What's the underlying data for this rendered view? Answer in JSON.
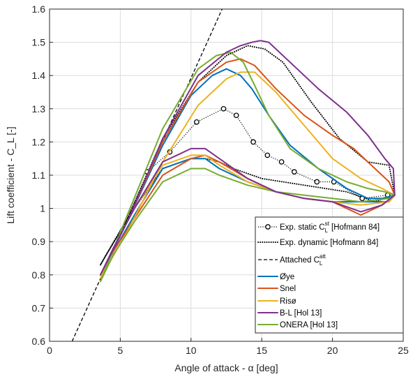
{
  "chart_data": {
    "type": "line",
    "xlabel": "Angle of attack - α [deg]",
    "ylabel": "Lift coefficient - C_L [-]",
    "xlim": [
      0,
      25
    ],
    "ylim": [
      0.6,
      1.6
    ],
    "xticks": [
      "0",
      "5",
      "10",
      "15",
      "20",
      "25"
    ],
    "yticks": [
      "0.6",
      "0.7",
      "0.8",
      "0.9",
      "1",
      "1.1",
      "1.2",
      "1.3",
      "1.4",
      "1.5",
      "1.6"
    ],
    "grid": true,
    "legend_position": "bottom-right",
    "series": [
      {
        "name": "Exp. static C_L^st [Hofmann 84]",
        "legend": {
          "main": "Exp. static C",
          "sub": "L",
          "sup": "st",
          "tail": " [Hofmann 84]"
        },
        "color": "#000000",
        "style": "dotted-markers",
        "x": [
          6.9,
          8.5,
          10.4,
          12.3,
          13.2,
          14.4,
          15.4,
          16.4,
          17.3,
          18.9,
          20.1,
          22.1,
          23.9
        ],
        "y": [
          1.11,
          1.17,
          1.26,
          1.3,
          1.28,
          1.2,
          1.16,
          1.14,
          1.11,
          1.08,
          1.08,
          1.03,
          1.04
        ]
      },
      {
        "name": "Exp. dynamic [Hofmann 84]",
        "legend": {
          "main": "Exp. dynamic [Hofmann 84]"
        },
        "color": "#000000",
        "style": "dotted",
        "x": [
          3.6,
          5.5,
          8.0,
          10.5,
          12.5,
          14.0,
          15.2,
          16.5,
          18.5,
          20.5,
          22.5,
          24.0,
          24.4,
          23.0,
          21.0,
          18.0,
          15.0,
          13.0,
          12.0,
          11.0,
          10.0,
          8.0,
          6.0,
          4.0,
          3.6
        ],
        "y": [
          0.83,
          0.97,
          1.21,
          1.38,
          1.46,
          1.49,
          1.48,
          1.44,
          1.32,
          1.21,
          1.14,
          1.13,
          1.04,
          1.02,
          1.05,
          1.07,
          1.09,
          1.12,
          1.14,
          1.15,
          1.15,
          1.12,
          1.0,
          0.86,
          0.83
        ]
      },
      {
        "name": "Attached C_L^att",
        "legend": {
          "main": "Attached C",
          "sub": "L",
          "sup": "att"
        },
        "color": "#000000",
        "style": "dashed",
        "x": [
          1.6,
          12.2
        ],
        "y": [
          0.6,
          1.6
        ]
      },
      {
        "name": "Øye",
        "legend": {
          "main": "Øye"
        },
        "color": "#0072BD",
        "style": "solid",
        "x": [
          3.6,
          5.5,
          8.0,
          10.0,
          11.5,
          12.5,
          13.5,
          14.3,
          15.5,
          17.0,
          19.0,
          21.0,
          22.5,
          23.5,
          24.4,
          24.0,
          22.0,
          20.0,
          18.0,
          16.0,
          14.0,
          12.0,
          11.0,
          10.0,
          8.0,
          6.0,
          4.5,
          3.6
        ],
        "y": [
          0.8,
          0.96,
          1.19,
          1.34,
          1.4,
          1.42,
          1.4,
          1.36,
          1.28,
          1.19,
          1.12,
          1.06,
          1.03,
          1.03,
          1.04,
          1.02,
          1.02,
          1.02,
          1.03,
          1.05,
          1.08,
          1.12,
          1.15,
          1.15,
          1.12,
          0.98,
          0.87,
          0.8
        ]
      },
      {
        "name": "Snel",
        "legend": {
          "main": "Snel"
        },
        "color": "#D95319",
        "style": "solid",
        "x": [
          3.6,
          5.5,
          8.0,
          10.5,
          12.5,
          13.5,
          14.5,
          16.0,
          18.0,
          20.0,
          21.5,
          23.0,
          24.0,
          24.4,
          23.5,
          22.0,
          20.0,
          18.0,
          16.0,
          14.0,
          12.0,
          11.0,
          10.0,
          8.0,
          6.0,
          4.5,
          3.6
        ],
        "y": [
          0.8,
          0.96,
          1.2,
          1.38,
          1.44,
          1.45,
          1.43,
          1.36,
          1.28,
          1.22,
          1.18,
          1.12,
          1.08,
          1.04,
          1.01,
          0.98,
          1.02,
          1.03,
          1.05,
          1.09,
          1.14,
          1.16,
          1.15,
          1.1,
          0.97,
          0.87,
          0.8
        ]
      },
      {
        "name": "Risø",
        "legend": {
          "main": "Risø"
        },
        "color": "#EDB120",
        "style": "solid",
        "x": [
          3.6,
          5.5,
          8.0,
          10.5,
          12.5,
          13.5,
          14.5,
          16.0,
          18.0,
          20.0,
          22.0,
          23.5,
          24.4,
          24.0,
          22.0,
          20.0,
          18.0,
          16.0,
          14.0,
          12.0,
          11.0,
          10.0,
          8.0,
          6.0,
          4.5,
          3.6
        ],
        "y": [
          0.79,
          0.93,
          1.14,
          1.31,
          1.39,
          1.41,
          1.41,
          1.35,
          1.25,
          1.15,
          1.09,
          1.06,
          1.04,
          1.02,
          1.01,
          1.02,
          1.03,
          1.05,
          1.08,
          1.13,
          1.16,
          1.16,
          1.13,
          1.0,
          0.88,
          0.79
        ]
      },
      {
        "name": "B-L [Hol 13]",
        "legend": {
          "main": "B-L [Hol 13]"
        },
        "color": "#7E2F8E",
        "style": "solid",
        "x": [
          3.6,
          5.5,
          8.0,
          10.5,
          12.5,
          13.5,
          14.3,
          14.9,
          15.5,
          17.0,
          19.0,
          21.0,
          22.5,
          23.7,
          24.3,
          24.4,
          23.5,
          22.0,
          20.0,
          18.0,
          16.0,
          14.0,
          12.0,
          11.0,
          10.0,
          8.0,
          6.0,
          4.5,
          3.6
        ],
        "y": [
          0.8,
          0.96,
          1.21,
          1.4,
          1.47,
          1.49,
          1.5,
          1.505,
          1.5,
          1.44,
          1.36,
          1.29,
          1.22,
          1.15,
          1.12,
          1.04,
          1.01,
          0.99,
          1.02,
          1.03,
          1.05,
          1.09,
          1.15,
          1.18,
          1.18,
          1.14,
          1.0,
          0.88,
          0.8
        ]
      },
      {
        "name": "ONERA [Hol 13]",
        "legend": {
          "main": "ONERA [Hol 13]"
        },
        "color": "#77AC30",
        "style": "solid",
        "x": [
          3.6,
          5.5,
          8.0,
          10.5,
          11.8,
          12.8,
          13.7,
          14.5,
          15.5,
          17.0,
          19.0,
          21.0,
          22.5,
          23.7,
          24.4,
          24.0,
          22.0,
          20.0,
          18.0,
          16.0,
          14.0,
          12.0,
          11.0,
          10.0,
          8.0,
          6.0,
          4.5,
          3.6
        ],
        "y": [
          0.78,
          0.98,
          1.24,
          1.42,
          1.46,
          1.47,
          1.44,
          1.37,
          1.28,
          1.18,
          1.12,
          1.08,
          1.06,
          1.05,
          1.04,
          1.03,
          1.02,
          1.03,
          1.04,
          1.05,
          1.07,
          1.1,
          1.12,
          1.12,
          1.08,
          0.96,
          0.86,
          0.78
        ]
      }
    ]
  }
}
